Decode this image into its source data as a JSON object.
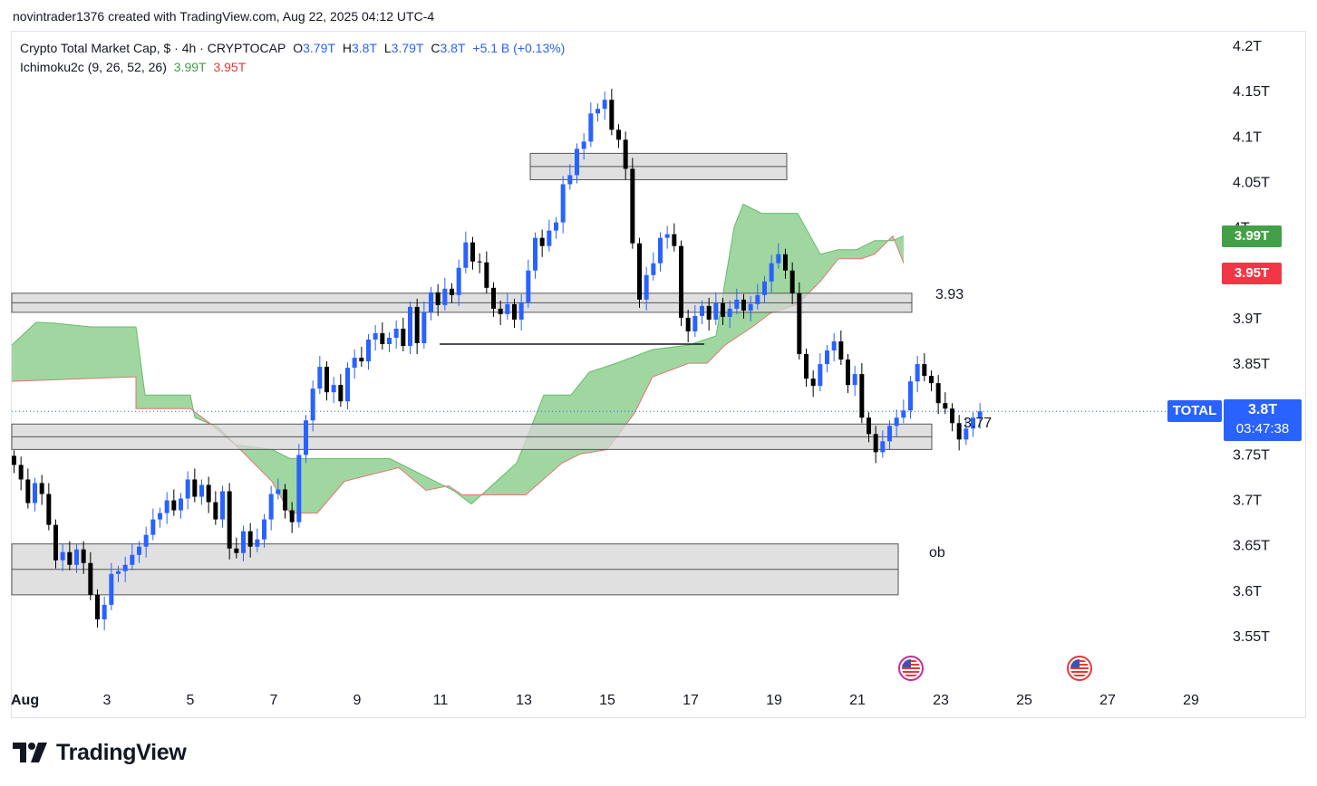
{
  "attribution": "novintrader1376 created with TradingView.com, Aug 22, 2025 04:12 UTC-4",
  "legend": {
    "symbol": "Crypto Total Market Cap, $ · 4h · CRYPTOCAP",
    "o_label": "O",
    "o_value": "3.79T",
    "h_label": "H",
    "h_value": "3.8T",
    "l_label": "L",
    "l_value": "3.79T",
    "c_label": "C",
    "c_value": "3.8T",
    "change": "+5.1 B (+0.13%)",
    "indicator": "Ichimoku2c (9, 26, 52, 26)",
    "ind_value1": "3.99T",
    "ind_value2": "3.95T"
  },
  "price_tags": {
    "green": "3.99T",
    "red": "3.95T",
    "symbol": "TOTAL",
    "last": "3.8T",
    "countdown": "03:47:38"
  },
  "annotations": {
    "level_393": "3.93",
    "level_377": "3.77",
    "ob": "ob"
  },
  "brand": "TradingView",
  "colors": {
    "bull": "#2962ff",
    "bear": "#000000",
    "cloud": "#8fd08f",
    "cloud_edge": "#e57373",
    "zone": "#d6d6d6",
    "tag_green": "#43a047",
    "tag_red": "#f23645"
  },
  "icons": {
    "event_markers": "us-flag-icon"
  },
  "chart_data": {
    "type": "candlestick",
    "title": "Crypto Total Market Cap, $ · 4h · CRYPTOCAP",
    "ylim": [
      3.52,
      4.22
    ],
    "y_ticks": [
      "3.55T",
      "3.6T",
      "3.65T",
      "3.7T",
      "3.75T",
      "3.8T",
      "3.85T",
      "3.9T",
      "3.95T",
      "4T",
      "4.05T",
      "4.1T",
      "4.15T",
      "4.2T"
    ],
    "y_tick_values": [
      3.55,
      3.6,
      3.65,
      3.7,
      3.75,
      3.8,
      3.85,
      3.9,
      3.95,
      4.0,
      4.05,
      4.1,
      4.15,
      4.2
    ],
    "x_ticks": [
      "Aug",
      "3",
      "5",
      "7",
      "9",
      "11",
      "13",
      "15",
      "17",
      "19",
      "21",
      "23",
      "25",
      "27",
      "29"
    ],
    "x_tick_days": [
      1,
      3,
      5,
      7,
      9,
      11,
      13,
      15,
      17,
      19,
      21,
      23,
      25,
      27,
      29
    ],
    "candle_interval": "4h",
    "candles_close": [
      3.738,
      3.722,
      3.696,
      3.718,
      3.706,
      3.672,
      3.633,
      3.642,
      3.628,
      3.645,
      3.63,
      3.595,
      3.568,
      3.584,
      3.618,
      3.621,
      3.628,
      3.639,
      3.648,
      3.661,
      3.678,
      3.685,
      3.699,
      3.688,
      3.701,
      3.722,
      3.703,
      3.716,
      3.697,
      3.678,
      3.709,
      3.646,
      3.641,
      3.665,
      3.648,
      3.656,
      3.678,
      3.706,
      3.711,
      3.688,
      3.675,
      3.749,
      3.787,
      3.822,
      3.846,
      3.818,
      3.826,
      3.808,
      3.845,
      3.856,
      3.852,
      3.876,
      3.883,
      3.871,
      3.878,
      3.888,
      3.869,
      3.912,
      3.872,
      3.906,
      3.928,
      3.914,
      3.932,
      3.925,
      3.955,
      3.983,
      3.962,
      3.961,
      3.933,
      3.91,
      3.904,
      3.915,
      3.898,
      3.917,
      3.952,
      3.988,
      3.979,
      3.996,
      4.005,
      4.047,
      4.057,
      4.086,
      4.094,
      4.125,
      4.13,
      4.14,
      4.107,
      4.096,
      4.064,
      3.982,
      3.92,
      3.947,
      3.96,
      3.988,
      3.992,
      3.979,
      3.9,
      3.885,
      3.902,
      3.913,
      3.898,
      3.916,
      3.901,
      3.91,
      3.92,
      3.908,
      3.915,
      3.925,
      3.94,
      3.96,
      3.97,
      3.952,
      3.927,
      3.86,
      3.833,
      3.825,
      3.849,
      3.864,
      3.874,
      3.854,
      3.826,
      3.838,
      3.79,
      3.772,
      3.752,
      3.764,
      3.781,
      3.79,
      3.798,
      3.83,
      3.849,
      3.836,
      3.828,
      3.806,
      3.8,
      3.784,
      3.766,
      3.778,
      3.79,
      3.797
    ],
    "annotations": [
      "3.93",
      "3.77",
      "ob"
    ]
  }
}
